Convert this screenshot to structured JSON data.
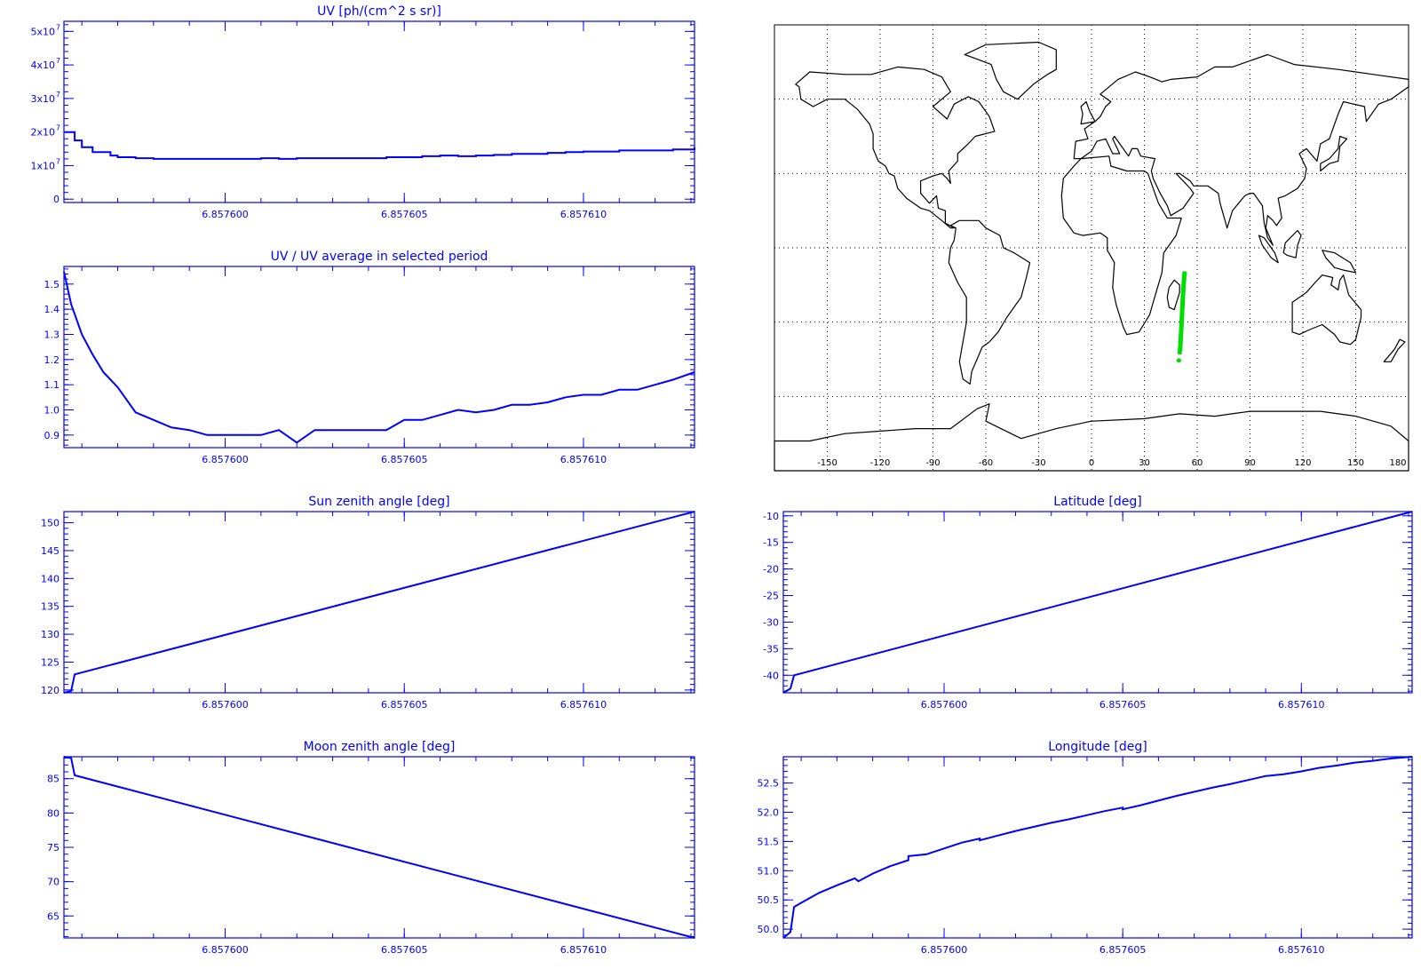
{
  "colors": {
    "plot": "#0000ff",
    "map_outline": "#000000",
    "track": "#00dd00",
    "grid": "#000000"
  },
  "chart_data": [
    {
      "id": "uv",
      "type": "line",
      "title": "UV [ph/(cm^2 s sr)]",
      "xlim": [
        6.8575955,
        6.8576131
      ],
      "x_ticks": [
        "6.857600",
        "6.857605",
        "6.857610"
      ],
      "x_tick_values": [
        6.8576,
        6.857605,
        6.85761
      ],
      "ylim": [
        -0.1,
        5.3
      ],
      "y_scale_label": "x10^7",
      "y_ticks": [
        {
          "value": 0,
          "label": "0"
        },
        {
          "value": 1,
          "label": "1x10",
          "exp": "7"
        },
        {
          "value": 2,
          "label": "2x10",
          "exp": "7"
        },
        {
          "value": 3,
          "label": "3x10",
          "exp": "7"
        },
        {
          "value": 4,
          "label": "4x10",
          "exp": "7"
        },
        {
          "value": 5,
          "label": "5x10",
          "exp": "7"
        }
      ],
      "step": true,
      "series": [
        {
          "x": [
            6.8575955,
            6.8575958,
            6.857596,
            6.8575963,
            6.8575968,
            6.857597,
            6.8575975,
            6.857598,
            6.8575985,
            6.857599,
            6.8575995,
            6.8576,
            6.8576005,
            6.857601,
            6.8576015,
            6.857602,
            6.8576025,
            6.857603,
            6.8576035,
            6.857604,
            6.8576045,
            6.857605,
            6.8576055,
            6.857606,
            6.8576065,
            6.857607,
            6.8576075,
            6.857608,
            6.8576085,
            6.857609,
            6.8576095,
            6.85761,
            6.8576105,
            6.857611,
            6.8576115,
            6.857612,
            6.8576125,
            6.8576131
          ],
          "values": [
            2.0,
            1.75,
            1.55,
            1.4,
            1.3,
            1.25,
            1.22,
            1.2,
            1.2,
            1.2,
            1.2,
            1.2,
            1.2,
            1.22,
            1.2,
            1.22,
            1.22,
            1.22,
            1.22,
            1.22,
            1.25,
            1.25,
            1.28,
            1.3,
            1.28,
            1.3,
            1.32,
            1.35,
            1.35,
            1.38,
            1.4,
            1.42,
            1.42,
            1.45,
            1.45,
            1.45,
            1.48,
            1.55
          ]
        }
      ]
    },
    {
      "id": "uv_ratio",
      "type": "line",
      "title": "UV / UV average in selected period",
      "xlim": [
        6.8575955,
        6.8576131
      ],
      "x_ticks": [
        "6.857600",
        "6.857605",
        "6.857610"
      ],
      "x_tick_values": [
        6.8576,
        6.857605,
        6.85761
      ],
      "ylim": [
        0.85,
        1.57
      ],
      "y_ticks": [
        {
          "value": 0.9,
          "label": "0.9"
        },
        {
          "value": 1.0,
          "label": "1.0"
        },
        {
          "value": 1.1,
          "label": "1.1"
        },
        {
          "value": 1.2,
          "label": "1.2"
        },
        {
          "value": 1.3,
          "label": "1.3"
        },
        {
          "value": 1.4,
          "label": "1.4"
        },
        {
          "value": 1.5,
          "label": "1.5"
        }
      ],
      "series": [
        {
          "x": [
            6.8575955,
            6.8575957,
            6.857596,
            6.8575963,
            6.8575966,
            6.857597,
            6.8575972,
            6.8575975,
            6.857598,
            6.8575985,
            6.857599,
            6.8575995,
            6.8576,
            6.8576005,
            6.857601,
            6.8576015,
            6.857602,
            6.8576025,
            6.857603,
            6.8576035,
            6.857604,
            6.8576045,
            6.857605,
            6.8576055,
            6.857606,
            6.8576065,
            6.857607,
            6.8576075,
            6.857608,
            6.8576085,
            6.857609,
            6.8576095,
            6.85761,
            6.8576105,
            6.857611,
            6.8576115,
            6.857612,
            6.8576125,
            6.8576131
          ],
          "values": [
            1.55,
            1.42,
            1.3,
            1.22,
            1.15,
            1.09,
            1.05,
            0.99,
            0.96,
            0.93,
            0.92,
            0.9,
            0.9,
            0.9,
            0.9,
            0.92,
            0.87,
            0.92,
            0.92,
            0.92,
            0.92,
            0.92,
            0.96,
            0.96,
            0.98,
            1.0,
            0.99,
            1.0,
            1.02,
            1.02,
            1.03,
            1.05,
            1.06,
            1.06,
            1.08,
            1.08,
            1.1,
            1.12,
            1.15
          ]
        }
      ]
    },
    {
      "id": "sun_zenith",
      "type": "line",
      "title": "Sun zenith angle [deg]",
      "xlim": [
        6.8575955,
        6.8576131
      ],
      "x_ticks": [
        "6.857600",
        "6.857605",
        "6.857610"
      ],
      "x_tick_values": [
        6.8576,
        6.857605,
        6.85761
      ],
      "ylim": [
        119.5,
        152
      ],
      "y_ticks": [
        {
          "value": 120,
          "label": "120"
        },
        {
          "value": 125,
          "label": "125"
        },
        {
          "value": 130,
          "label": "130"
        },
        {
          "value": 135,
          "label": "135"
        },
        {
          "value": 140,
          "label": "140"
        },
        {
          "value": 145,
          "label": "145"
        },
        {
          "value": 150,
          "label": "150"
        }
      ],
      "series": [
        {
          "x": [
            6.8575955,
            6.8575957,
            6.8575958,
            6.8576131
          ],
          "values": [
            119.5,
            119.8,
            122.8,
            152
          ]
        }
      ]
    },
    {
      "id": "moon_zenith",
      "type": "line",
      "title": "Moon zenith angle [deg]",
      "xlim": [
        6.8575955,
        6.8576131
      ],
      "x_ticks": [
        "6.857600",
        "6.857605",
        "6.857610"
      ],
      "x_tick_values": [
        6.8576,
        6.857605,
        6.85761
      ],
      "ylim": [
        61.8,
        88.2
      ],
      "y_ticks": [
        {
          "value": 65,
          "label": "65"
        },
        {
          "value": 70,
          "label": "70"
        },
        {
          "value": 75,
          "label": "75"
        },
        {
          "value": 80,
          "label": "80"
        },
        {
          "value": 85,
          "label": "85"
        }
      ],
      "series": [
        {
          "x": [
            6.8575955,
            6.8575957,
            6.8575958,
            6.8576131
          ],
          "values": [
            88.2,
            88.0,
            85.5,
            61.8
          ]
        }
      ]
    },
    {
      "id": "latitude",
      "type": "line",
      "title": "Latitude [deg]",
      "xlim": [
        6.8575955,
        6.8576131
      ],
      "x_ticks": [
        "6.857600",
        "6.857605",
        "6.857610"
      ],
      "x_tick_values": [
        6.8576,
        6.857605,
        6.85761
      ],
      "ylim": [
        -43.3,
        -9.2
      ],
      "y_ticks": [
        {
          "value": -40,
          "label": "-40"
        },
        {
          "value": -35,
          "label": "-35"
        },
        {
          "value": -30,
          "label": "-30"
        },
        {
          "value": -25,
          "label": "-25"
        },
        {
          "value": -20,
          "label": "-20"
        },
        {
          "value": -15,
          "label": "-15"
        },
        {
          "value": -10,
          "label": "-10"
        }
      ],
      "series": [
        {
          "x": [
            6.8575955,
            6.8575957,
            6.8575958,
            6.8576131
          ],
          "values": [
            -43.3,
            -42.5,
            -40.0,
            -9.2
          ]
        }
      ]
    },
    {
      "id": "longitude",
      "type": "line",
      "title": "Longitude [deg]",
      "xlim": [
        6.8575955,
        6.8576131
      ],
      "x_ticks": [
        "6.857600",
        "6.857605",
        "6.857610"
      ],
      "x_tick_values": [
        6.8576,
        6.857605,
        6.85761
      ],
      "ylim": [
        49.85,
        52.95
      ],
      "y_ticks": [
        {
          "value": 50.0,
          "label": "50.0"
        },
        {
          "value": 50.5,
          "label": "50.5"
        },
        {
          "value": 51.0,
          "label": "51.0"
        },
        {
          "value": 51.5,
          "label": "51.5"
        },
        {
          "value": 52.0,
          "label": "52.0"
        },
        {
          "value": 52.5,
          "label": "52.5"
        }
      ],
      "series": [
        {
          "x": [
            6.8575955,
            6.8575957,
            6.8575958,
            6.857596,
            6.8575965,
            6.857597,
            6.8575975,
            6.8575976,
            6.857598,
            6.8575985,
            6.857599,
            6.857599,
            6.8575995,
            6.8576,
            6.8576005,
            6.857601,
            6.857601,
            6.8576015,
            6.857602,
            6.8576025,
            6.857603,
            6.8576035,
            6.857604,
            6.8576045,
            6.857605,
            6.857605,
            6.8576055,
            6.857606,
            6.8576065,
            6.857607,
            6.8576075,
            6.857608,
            6.8576085,
            6.857609,
            6.8576095,
            6.85761,
            6.8576105,
            6.857611,
            6.8576115,
            6.857612,
            6.8576125,
            6.8576131
          ],
          "values": [
            49.85,
            49.95,
            50.38,
            50.45,
            50.62,
            50.75,
            50.87,
            50.82,
            50.95,
            51.08,
            51.18,
            51.25,
            51.28,
            51.38,
            51.48,
            51.55,
            51.52,
            51.6,
            51.68,
            51.75,
            51.82,
            51.88,
            51.95,
            52.02,
            52.08,
            52.05,
            52.12,
            52.2,
            52.28,
            52.35,
            52.42,
            52.48,
            52.55,
            52.62,
            52.65,
            52.7,
            52.76,
            52.8,
            52.85,
            52.88,
            52.92,
            52.95
          ]
        }
      ]
    }
  ],
  "map": {
    "x_ticks": [
      "-150",
      "-120",
      "-90",
      "-60",
      "-30",
      "0",
      "30",
      "60",
      "90",
      "120",
      "150",
      "180"
    ],
    "x_tick_values": [
      -150,
      -120,
      -90,
      -60,
      -30,
      0,
      30,
      60,
      90,
      120,
      150,
      180
    ],
    "lon_range": [
      -180,
      180
    ],
    "lat_range": [
      -90,
      90
    ],
    "grid_lons": [
      -150,
      -120,
      -90,
      -60,
      -30,
      0,
      30,
      60,
      90,
      120,
      150
    ],
    "grid_lats": [
      -60,
      -30,
      0,
      30,
      60
    ],
    "track": {
      "lon": [
        49.9,
        50.4,
        51.0,
        51.6,
        52.2,
        52.9
      ],
      "lat": [
        -43.0,
        -40.0,
        -32.0,
        -24.0,
        -16.0,
        -9.5
      ]
    },
    "track_end_marker": {
      "lon": 49.6,
      "lat": -45.5
    }
  }
}
